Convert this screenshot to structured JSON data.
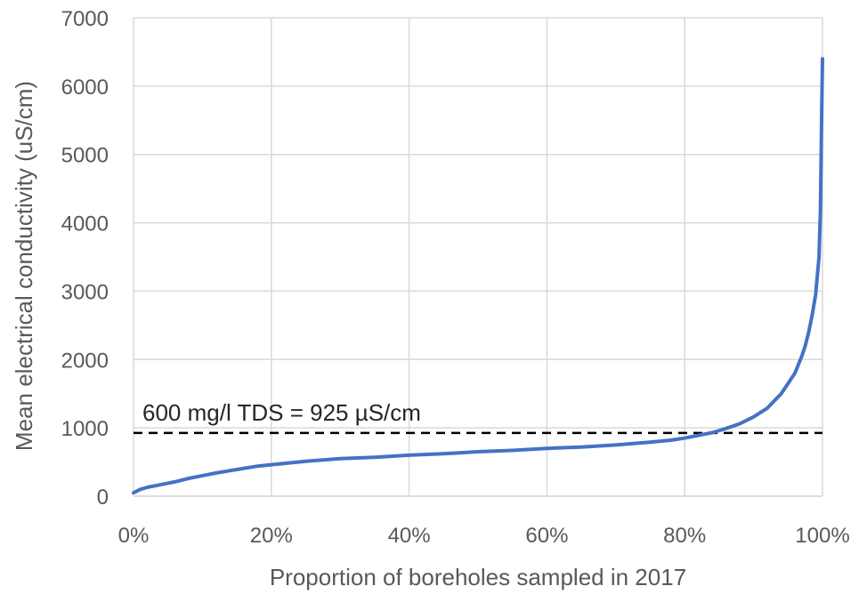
{
  "chart_data": {
    "type": "line",
    "title": "",
    "xlabel": "Proportion of boreholes sampled in 2017",
    "ylabel": "Mean electrical conductivity (uS/cm)",
    "xlim": [
      0,
      1
    ],
    "ylim": [
      0,
      7000
    ],
    "x_ticks": [
      0,
      0.2,
      0.4,
      0.6,
      0.8,
      1.0
    ],
    "x_tick_labels": [
      "0%",
      "20%",
      "40%",
      "60%",
      "80%",
      "100%"
    ],
    "y_ticks": [
      0,
      1000,
      2000,
      3000,
      4000,
      5000,
      6000,
      7000
    ],
    "y_tick_labels": [
      "0",
      "1000",
      "2000",
      "3000",
      "4000",
      "5000",
      "6000",
      "7000"
    ],
    "grid": true,
    "legend": "none",
    "series": [
      {
        "color": "#4472C4",
        "x": [
          0.0,
          0.01,
          0.02,
          0.04,
          0.06,
          0.08,
          0.1,
          0.12,
          0.15,
          0.18,
          0.2,
          0.25,
          0.3,
          0.35,
          0.4,
          0.45,
          0.5,
          0.55,
          0.6,
          0.65,
          0.7,
          0.75,
          0.78,
          0.8,
          0.82,
          0.84,
          0.86,
          0.88,
          0.9,
          0.92,
          0.94,
          0.95,
          0.96,
          0.97,
          0.975,
          0.98,
          0.985,
          0.99,
          0.995,
          0.997,
          0.998,
          0.999,
          1.0
        ],
        "y": [
          50,
          100,
          130,
          170,
          210,
          260,
          300,
          340,
          390,
          440,
          460,
          510,
          550,
          570,
          600,
          620,
          650,
          670,
          700,
          720,
          750,
          790,
          820,
          850,
          890,
          930,
          990,
          1060,
          1160,
          1290,
          1500,
          1650,
          1800,
          2050,
          2200,
          2400,
          2650,
          2950,
          3500,
          4200,
          5000,
          5700,
          6400
        ]
      }
    ],
    "reference_line": {
      "y": 925,
      "style": "dashed",
      "color": "#000000",
      "label": "600 mg/l TDS = 925 µS/cm"
    }
  }
}
